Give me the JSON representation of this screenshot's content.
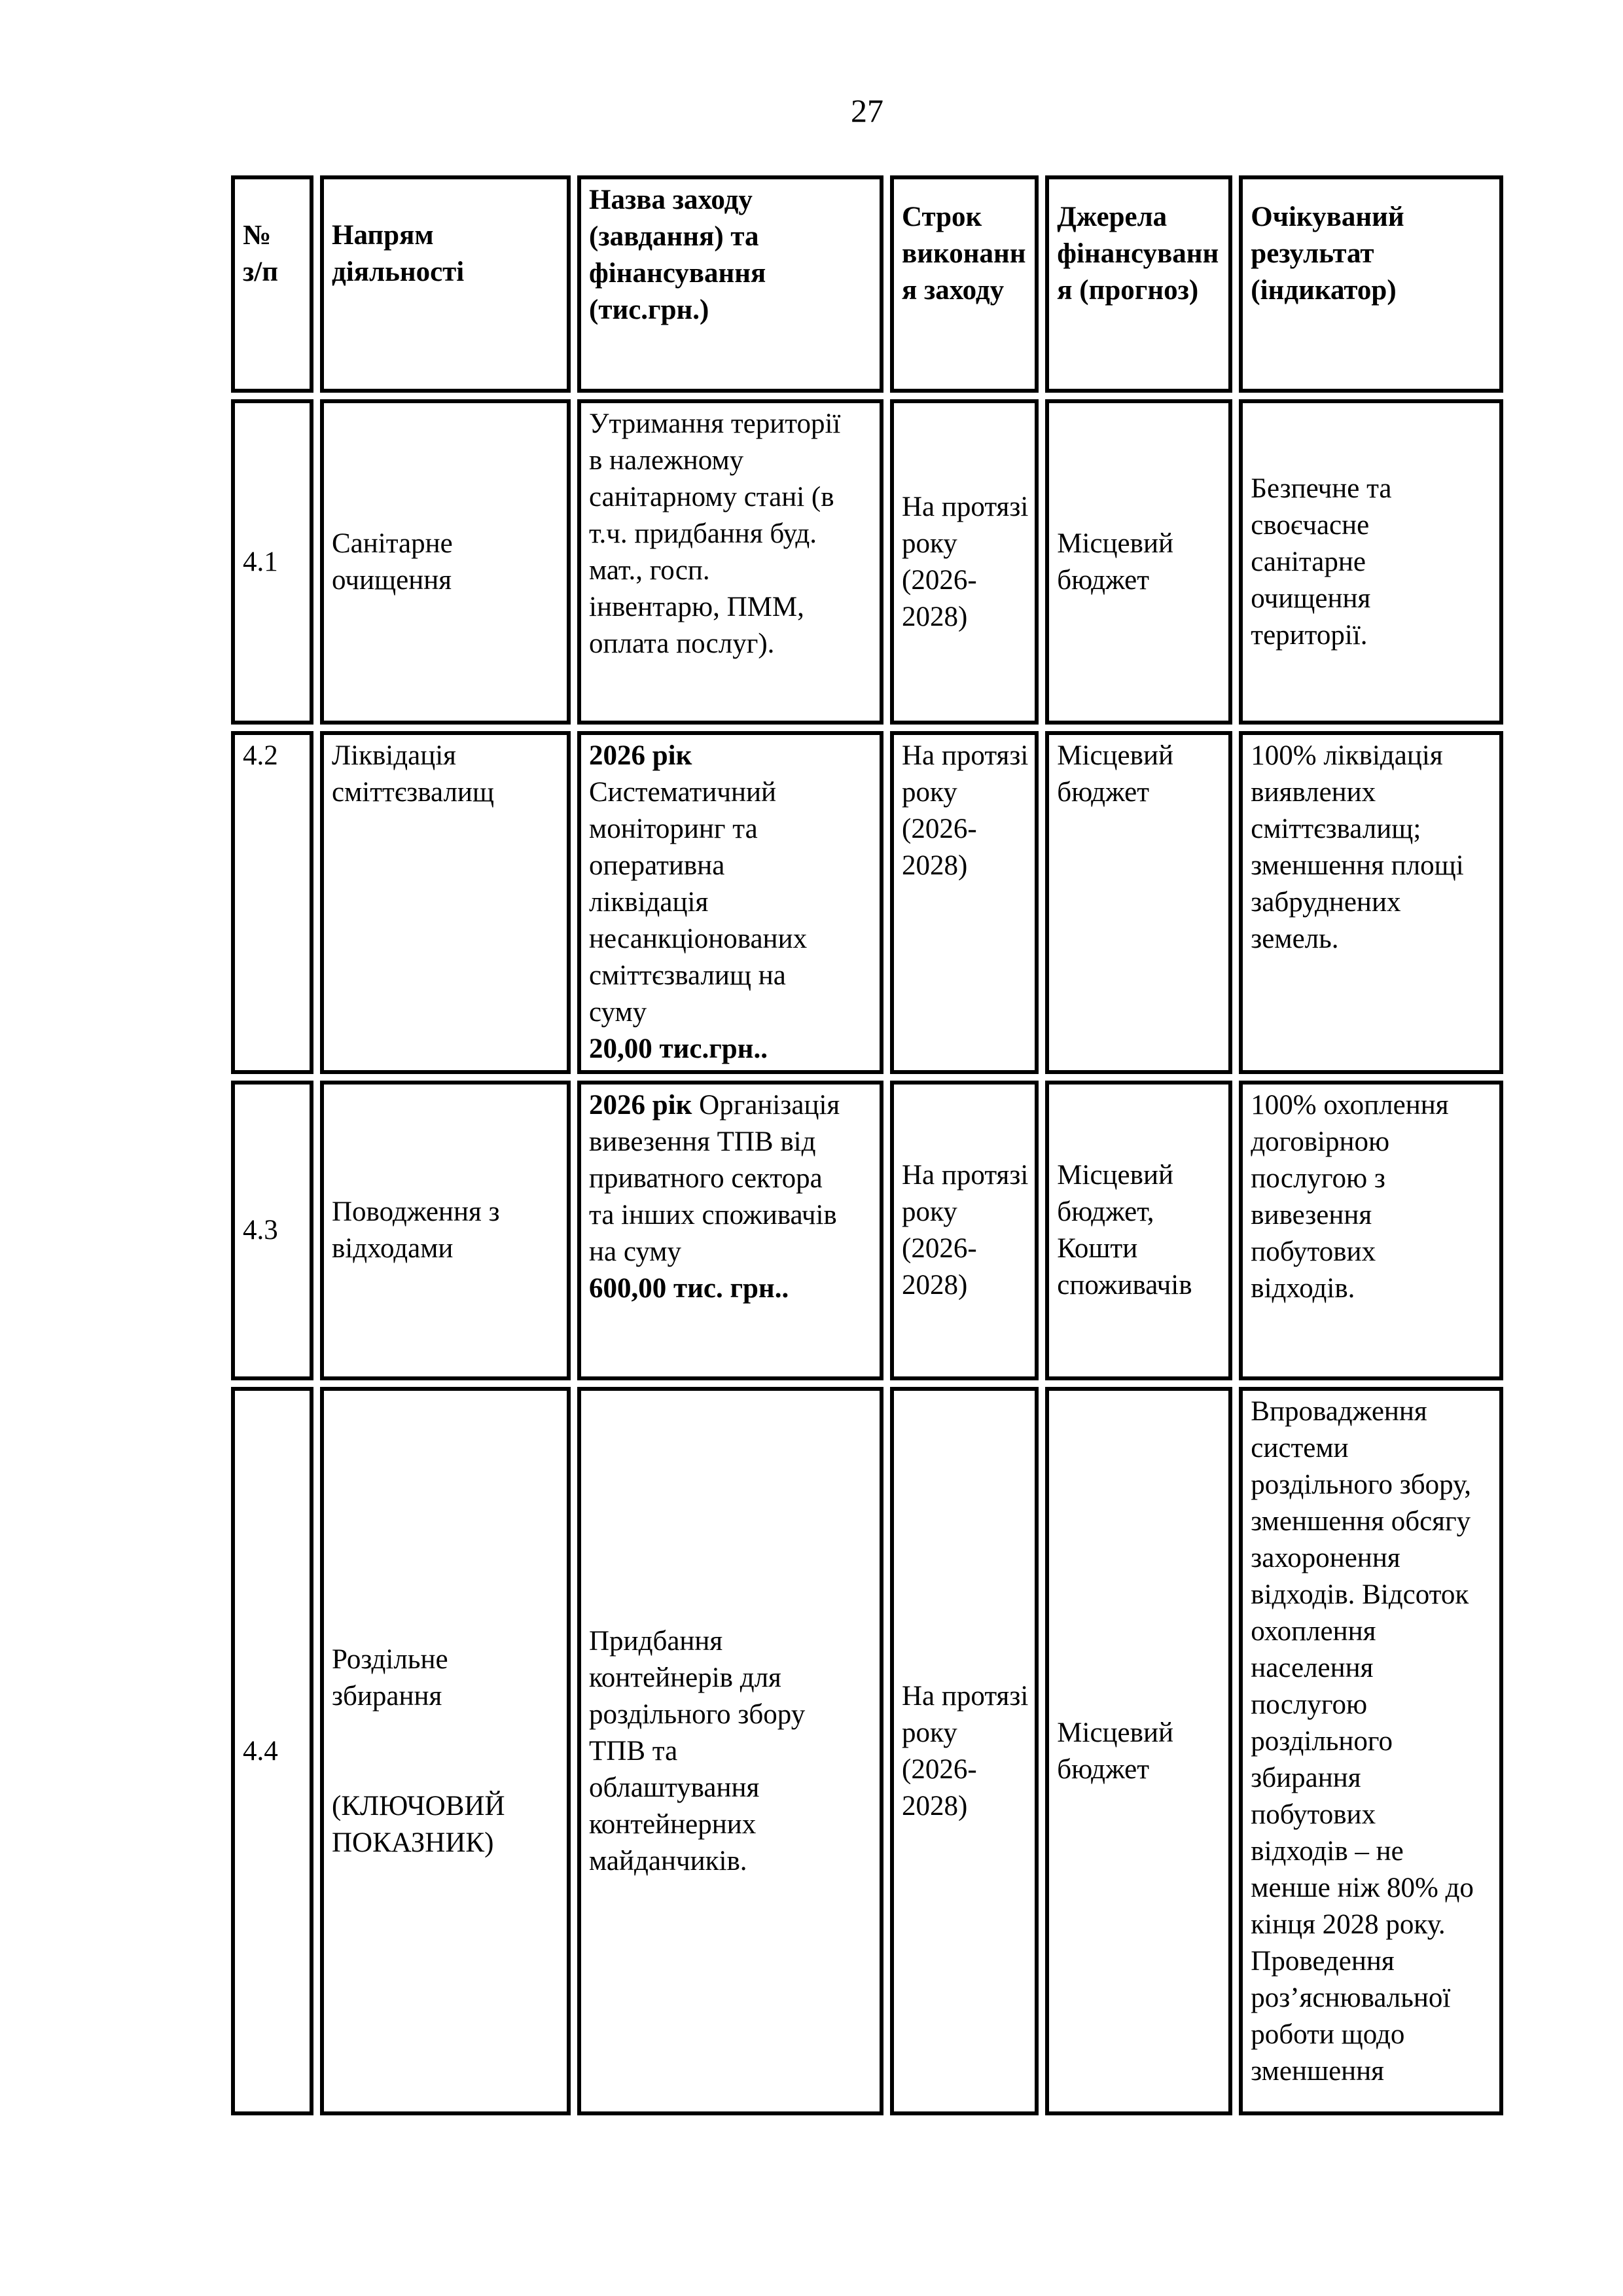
{
  "page_number": "27",
  "table": {
    "headers": {
      "num": "№\nз/п",
      "direction": "Напрям\nдіяльності",
      "measure": "Назва заходу\n(завдання) та\nфінансування\n(тис.грн.)",
      "term": "Строк\nвиконанн\nя заходу",
      "sources": "Джерела\nфінансуванн\nя (прогноз)",
      "result": "Очікуваний\nрезультат\n(індикатор)"
    },
    "rows": [
      {
        "num": "4.1",
        "direction": "Санітарне\nочищення",
        "measure": [
          {
            "t": "Утримання території\nв належному\nсанітарному стані (в\nт.ч. придбання буд.\nмат., госп.\nінвентарю, ПММ,\nоплата послуг).",
            "b": false
          }
        ],
        "term": "На протязі\nроку\n(2026-\n2028)",
        "sources": "Місцевий\nбюджет",
        "result": "Безпечне та\nсвоєчасне\nсанітарне\nочищення\nтериторії."
      },
      {
        "num": "4.2",
        "direction": "Ліквідація\nсміттєзвалищ",
        "measure": [
          {
            "t": "2026 рік",
            "b": true
          },
          {
            "t": "\nСистематичний\nмоніторинг та\nоперативна\nліквідація\nнесанкціонованих\nсміттєзвалищ на\nсуму\n",
            "b": false
          },
          {
            "t": "20,00 тис.грн..",
            "b": true
          }
        ],
        "term": "На протязі\nроку\n(2026-\n2028)",
        "sources": "Місцевий\nбюджет",
        "result": "100% ліквідація\nвиявлених\nсміттєзвалищ;\nзменшення площі\nзабруднених\nземель."
      },
      {
        "num": "4.3",
        "direction": "Поводження з\nвідходами",
        "measure": [
          {
            "t": "2026 рік",
            "b": true
          },
          {
            "t": " Організація\nвивезення ТПВ від\nприватного сектора\nта інших споживачів\nна суму\n",
            "b": false
          },
          {
            "t": "600,00 тис. грн..",
            "b": true
          }
        ],
        "term": "На протязі\nроку\n(2026-\n2028)",
        "sources": "Місцевий\nбюджет,\nКошти\nспоживачів",
        "result": "100% охоплення\nдоговірною\nпослугою з\nвивезення\nпобутових\nвідходів."
      },
      {
        "num": "4.4",
        "direction": "Роздільне\nзбирання\n\n\n(КЛЮЧОВИЙ\nПОКАЗНИК)",
        "measure": [
          {
            "t": "Придбання\nконтейнерів для\nроздільного збору\nТПВ та\nоблаштування\nконтейнерних\nмайданчиків.",
            "b": false
          }
        ],
        "term": "На протязі\nроку\n(2026-\n2028)",
        "sources": "Місцевий\nбюджет",
        "result": "Впровадження\nсистеми\nроздільного збору,\nзменшення обсягу\nзахоронення\nвідходів. Відсоток\nохоплення\nнаселення\nпослугою\nроздільного\nзбирання\nпобутових\nвідходів – не\nменше ніж 80% до\nкінця 2028 року.\nПроведення\nроз’яснювальної\nроботи щодо\nзменшення"
      }
    ]
  }
}
